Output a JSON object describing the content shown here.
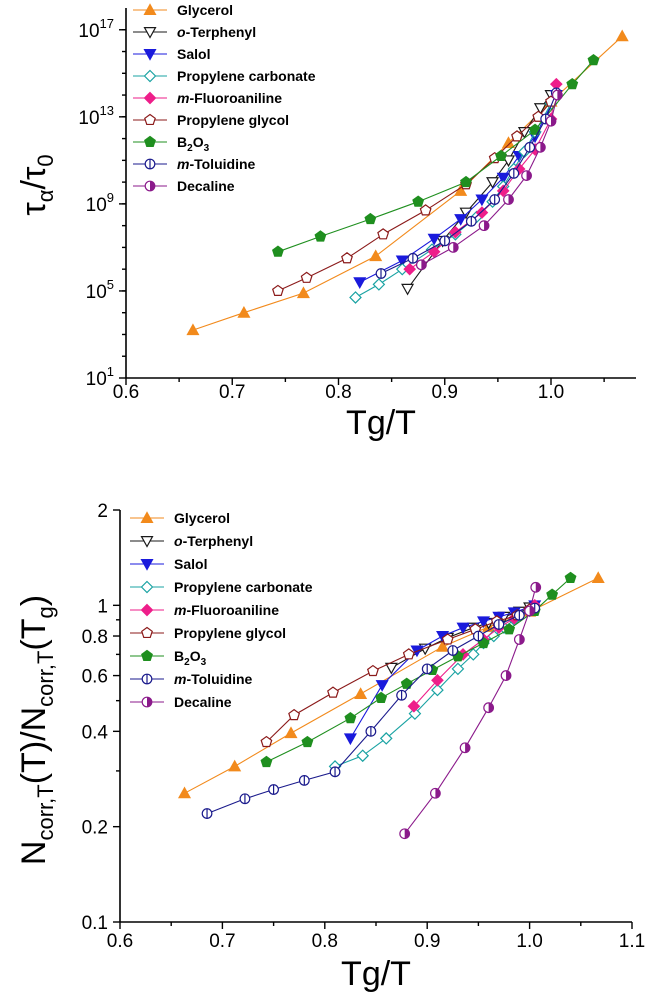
{
  "colors": {
    "glycerol": "#f28a1c",
    "oterphenyl": "#1a1a1a",
    "salol": "#1a1adc",
    "propylene_carbonate": "#1aa3a3",
    "mfluoroaniline": "#ee1e8a",
    "propylene_glycol": "#8b1a1a",
    "b2o3": "#1f8f1f",
    "mtoluidine": "#1a1a8c",
    "decaline": "#8b1a8b"
  },
  "chart_data": [
    {
      "type": "line",
      "xlabel": "Tg/T",
      "ylabel_main": "τ",
      "ylabel_sub1": "α",
      "ylabel_mid": "/τ",
      "ylabel_sub2": "0",
      "xlim": [
        0.6,
        1.08
      ],
      "ylim_log10": [
        1,
        18
      ],
      "y_scale": "log",
      "xticks": [
        "0.6",
        "0.7",
        "0.8",
        "0.9",
        "1.0"
      ],
      "xtick_values": [
        0.6,
        0.7,
        0.8,
        0.9,
        1.0
      ],
      "ytick_mantissa": [
        "10",
        "10",
        "10",
        "10",
        "10"
      ],
      "ytick_exponent": [
        "1",
        "5",
        "9",
        "13",
        "17"
      ],
      "ytick_values": [
        1,
        5,
        9,
        13,
        17
      ],
      "legend_position": "top-left",
      "series": [
        {
          "key": "glycerol",
          "name": "Glycerol",
          "marker": "triangle-up",
          "fill": "solid",
          "x": [
            0.663,
            0.711,
            0.767,
            0.835,
            0.915,
            0.96,
            1.0,
            1.067
          ],
          "y": [
            3.2,
            4.0,
            4.9,
            6.6,
            9.6,
            11.8,
            13.7,
            16.7
          ]
        },
        {
          "key": "oterphenyl",
          "name": "o-Terphenyl",
          "name_prefix": "o",
          "name_suffix": "-Terphenyl",
          "marker": "triangle-down",
          "fill": "open",
          "x": [
            0.865,
            0.898,
            0.92,
            0.945,
            0.96,
            0.975,
            0.99,
            1.0
          ],
          "y": [
            5.1,
            7.3,
            8.6,
            10.0,
            11.0,
            12.3,
            13.4,
            14.0
          ]
        },
        {
          "key": "salol",
          "name": "Salol",
          "marker": "triangle-down",
          "fill": "solid",
          "x": [
            0.82,
            0.86,
            0.89,
            0.915,
            0.935,
            0.955,
            0.97,
            0.985,
            1.005
          ],
          "y": [
            5.4,
            6.4,
            7.4,
            8.3,
            9.2,
            10.2,
            11.2,
            12.1,
            14.0
          ]
        },
        {
          "key": "propylene_carbonate",
          "name": "Propylene carbonate",
          "marker": "diamond",
          "fill": "open",
          "x": [
            0.816,
            0.838,
            0.86,
            0.888,
            0.91,
            0.93,
            0.945,
            0.955,
            0.965,
            0.975,
            0.985,
            1.0
          ],
          "y": [
            4.7,
            5.3,
            6.0,
            6.9,
            7.6,
            8.4,
            9.1,
            9.8,
            10.6,
            11.4,
            12.3,
            13.6
          ]
        },
        {
          "key": "mfluoroaniline",
          "name": "m-Fluoroaniline",
          "name_prefix": "m",
          "name_suffix": "-Fluoroaniline",
          "marker": "diamond",
          "fill": "solid",
          "x": [
            0.867,
            0.89,
            0.91,
            0.935,
            0.955,
            0.97,
            0.985,
            1.0,
            1.005
          ],
          "y": [
            6.0,
            6.8,
            7.7,
            8.6,
            9.6,
            10.6,
            11.5,
            12.9,
            14.5
          ]
        },
        {
          "key": "propylene_glycol",
          "name": "Propylene glycol",
          "marker": "pentagon",
          "fill": "open",
          "x": [
            0.743,
            0.77,
            0.808,
            0.842,
            0.882,
            0.92,
            0.947,
            0.968,
            0.988,
            1.0
          ],
          "y": [
            5.0,
            5.6,
            6.5,
            7.6,
            8.7,
            9.9,
            11.1,
            12.1,
            13.0,
            13.7
          ]
        },
        {
          "key": "b2o3",
          "name": "B2O3",
          "name_prefix": "B",
          "name_sub": "2",
          "name_mid": "O",
          "name_sub2": "3",
          "marker": "pentagon",
          "fill": "solid",
          "x": [
            0.743,
            0.783,
            0.83,
            0.875,
            0.92,
            0.953,
            0.985,
            1.02,
            1.04
          ],
          "y": [
            6.8,
            7.5,
            8.3,
            9.1,
            10.0,
            11.2,
            12.4,
            14.5,
            15.6
          ]
        },
        {
          "key": "mtoluidine",
          "name": "m-Toluidine",
          "name_prefix": "m",
          "name_suffix": "-Toluidine",
          "marker": "circle-half-v",
          "fill": "half",
          "x": [
            0.84,
            0.87,
            0.9,
            0.925,
            0.947,
            0.965,
            0.98,
            0.995,
            1.005
          ],
          "y": [
            5.8,
            6.5,
            7.3,
            8.2,
            9.2,
            10.4,
            11.6,
            12.9,
            14.1
          ]
        },
        {
          "key": "decaline",
          "name": "Decaline",
          "marker": "circle-half-h",
          "fill": "half",
          "x": [
            0.878,
            0.908,
            0.937,
            0.96,
            0.977,
            0.99,
            1.0,
            1.006
          ],
          "y": [
            6.2,
            7.0,
            8.0,
            9.2,
            10.3,
            11.6,
            12.8,
            14.0
          ]
        }
      ]
    },
    {
      "type": "line",
      "xlabel": "Tg/T",
      "ylabel_main": "N",
      "ylabel_sub1": "corr,T",
      "ylabel_mid": "(T)/N",
      "ylabel_sub2": "corr,T",
      "ylabel_end": "(T",
      "ylabel_sub3": "g",
      "ylabel_close": ")",
      "xlim": [
        0.6,
        1.1
      ],
      "ylim": [
        0.1,
        2.0
      ],
      "y_scale": "log",
      "xticks": [
        "0.6",
        "0.7",
        "0.8",
        "0.9",
        "1.0",
        "1.1"
      ],
      "xtick_values": [
        0.6,
        0.7,
        0.8,
        0.9,
        1.0,
        1.1
      ],
      "yticks": [
        "0.1",
        "0.2",
        "0.4",
        "0.6",
        "0.8",
        "1",
        "2"
      ],
      "ytick_values": [
        0.1,
        0.2,
        0.4,
        0.6,
        0.8,
        1.0,
        2.0
      ],
      "legend_position": "top-left",
      "series": [
        {
          "key": "glycerol",
          "name": "Glycerol",
          "marker": "triangle-up",
          "fill": "solid",
          "x": [
            0.663,
            0.712,
            0.767,
            0.835,
            0.915,
            0.96,
            1.0,
            1.067
          ],
          "y": [
            0.255,
            0.31,
            0.395,
            0.525,
            0.74,
            0.855,
            0.955,
            1.22
          ]
        },
        {
          "key": "oterphenyl",
          "name": "o-Terphenyl",
          "marker": "triangle-down",
          "fill": "open",
          "x": [
            0.865,
            0.898,
            0.92,
            0.945,
            0.96,
            0.975,
            0.99,
            1.0
          ],
          "y": [
            0.635,
            0.73,
            0.79,
            0.85,
            0.88,
            0.92,
            0.955,
            0.985
          ]
        },
        {
          "key": "salol",
          "name": "Salol",
          "marker": "triangle-down",
          "fill": "solid",
          "x": [
            0.825,
            0.856,
            0.89,
            0.915,
            0.935,
            0.955,
            0.97,
            0.985,
            1.005
          ],
          "y": [
            0.38,
            0.56,
            0.72,
            0.8,
            0.85,
            0.89,
            0.92,
            0.95,
            1.0
          ]
        },
        {
          "key": "propylene_carbonate",
          "name": "Propylene carbonate",
          "marker": "diamond",
          "fill": "open",
          "x": [
            0.81,
            0.837,
            0.86,
            0.888,
            0.91,
            0.93,
            0.945,
            0.955,
            0.965,
            0.975,
            0.985,
            1.0
          ],
          "y": [
            0.31,
            0.335,
            0.38,
            0.455,
            0.54,
            0.63,
            0.7,
            0.76,
            0.8,
            0.85,
            0.9,
            0.96
          ]
        },
        {
          "key": "mfluoroaniline",
          "name": "m-Fluoroaniline",
          "marker": "diamond",
          "fill": "solid",
          "x": [
            0.887,
            0.91,
            0.935,
            0.955,
            0.97,
            0.985,
            1.0,
            1.005
          ],
          "y": [
            0.48,
            0.58,
            0.7,
            0.78,
            0.85,
            0.91,
            0.97,
            1.0
          ]
        },
        {
          "key": "propylene_glycol",
          "name": "Propylene glycol",
          "marker": "pentagon",
          "fill": "open",
          "x": [
            0.743,
            0.77,
            0.808,
            0.847,
            0.882,
            0.92,
            0.947,
            0.968,
            0.988,
            1.0
          ],
          "y": [
            0.37,
            0.45,
            0.53,
            0.62,
            0.7,
            0.78,
            0.84,
            0.89,
            0.93,
            0.97
          ]
        },
        {
          "key": "b2o3",
          "name": "B2O3",
          "marker": "pentagon",
          "fill": "solid",
          "x": [
            0.743,
            0.783,
            0.825,
            0.855,
            0.88,
            0.905,
            0.93,
            0.955,
            0.98,
            1.005,
            1.022,
            1.04
          ],
          "y": [
            0.32,
            0.37,
            0.44,
            0.51,
            0.565,
            0.625,
            0.69,
            0.76,
            0.84,
            0.96,
            1.08,
            1.22
          ]
        },
        {
          "key": "mtoluidine",
          "name": "m-Toluidine",
          "marker": "circle-half-v",
          "fill": "half",
          "x": [
            0.685,
            0.722,
            0.75,
            0.78,
            0.81,
            0.845,
            0.875,
            0.9,
            0.925,
            0.95,
            0.97,
            0.99,
            1.005
          ],
          "y": [
            0.22,
            0.245,
            0.262,
            0.28,
            0.298,
            0.4,
            0.52,
            0.63,
            0.72,
            0.8,
            0.87,
            0.93,
            0.98
          ]
        },
        {
          "key": "decaline",
          "name": "Decaline",
          "marker": "circle-half-h",
          "fill": "half",
          "x": [
            0.878,
            0.908,
            0.937,
            0.96,
            0.977,
            0.99,
            1.0,
            1.006
          ],
          "y": [
            0.19,
            0.255,
            0.355,
            0.475,
            0.6,
            0.78,
            0.96,
            1.14
          ]
        }
      ]
    }
  ]
}
